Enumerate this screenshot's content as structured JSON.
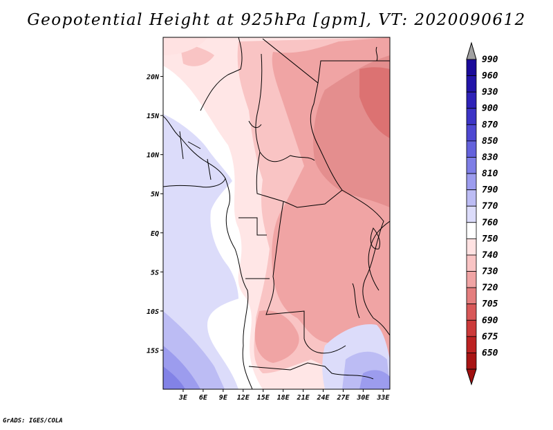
{
  "title": "Geopotential Height at 925hPa [gpm], VT: 2020090612",
  "credit": "GrADS: IGES/COLA",
  "map": {
    "lon_range": [
      0,
      34
    ],
    "lat_range": [
      -20,
      25
    ],
    "lat_ticks": [
      {
        "lat": 20,
        "label": "20N"
      },
      {
        "lat": 15,
        "label": "15N"
      },
      {
        "lat": 10,
        "label": "10N"
      },
      {
        "lat": 5,
        "label": "5N"
      },
      {
        "lat": 0,
        "label": "EQ"
      },
      {
        "lat": -5,
        "label": "5S"
      },
      {
        "lat": -10,
        "label": "10S"
      },
      {
        "lat": -15,
        "label": "15S"
      }
    ],
    "lon_ticks": [
      {
        "lon": 3,
        "label": "3E"
      },
      {
        "lon": 6,
        "label": "6E"
      },
      {
        "lon": 9,
        "label": "9E"
      },
      {
        "lon": 12,
        "label": "12E"
      },
      {
        "lon": 15,
        "label": "15E"
      },
      {
        "lon": 18,
        "label": "18E"
      },
      {
        "lon": 21,
        "label": "21E"
      },
      {
        "lon": 24,
        "label": "24E"
      },
      {
        "lon": 27,
        "label": "27E"
      },
      {
        "lon": 30,
        "label": "30E"
      },
      {
        "lon": 33,
        "label": "33E"
      }
    ]
  },
  "colorbar": {
    "top_arrow_color": "#a0a0a0",
    "bottom_arrow_color": "#a01010",
    "levels": [
      {
        "label": "990",
        "color": "#1a0a9a"
      },
      {
        "label": "960",
        "color": "#2214a8"
      },
      {
        "label": "930",
        "color": "#2e22b8"
      },
      {
        "label": "900",
        "color": "#3c34c6"
      },
      {
        "label": "870",
        "color": "#4e48d2"
      },
      {
        "label": "850",
        "color": "#6462dc"
      },
      {
        "label": "830",
        "color": "#7e7ee6"
      },
      {
        "label": "810",
        "color": "#9c9cee"
      },
      {
        "label": "790",
        "color": "#bcbcf4"
      },
      {
        "label": "770",
        "color": "#dcdcfa"
      },
      {
        "label": "760",
        "color": "#ffffff"
      },
      {
        "label": "750",
        "color": "#ffe2e2"
      },
      {
        "label": "740",
        "color": "#f9c4c4"
      },
      {
        "label": "730",
        "color": "#f0a4a4"
      },
      {
        "label": "720",
        "color": "#e47e7e"
      },
      {
        "label": "705",
        "color": "#d85858"
      },
      {
        "label": "690",
        "color": "#cc3a3a"
      },
      {
        "label": "675",
        "color": "#bc2222"
      },
      {
        "label": "650",
        "color": "#a81414"
      }
    ]
  }
}
